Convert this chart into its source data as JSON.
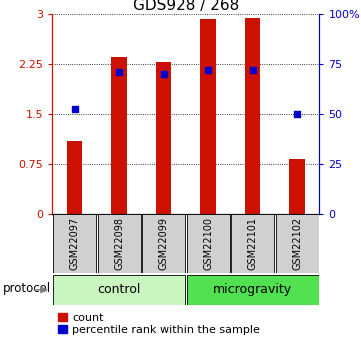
{
  "title": "GDS928 / 268",
  "samples": [
    "GSM22097",
    "GSM22098",
    "GSM22099",
    "GSM22100",
    "GSM22101",
    "GSM22102"
  ],
  "red_values": [
    1.1,
    2.35,
    2.28,
    2.92,
    2.93,
    0.82
  ],
  "blue_values": [
    1.57,
    2.12,
    2.1,
    2.15,
    2.15,
    1.5
  ],
  "ylim_left": [
    0,
    3
  ],
  "ylim_right": [
    0,
    100
  ],
  "yticks_left": [
    0,
    0.75,
    1.5,
    2.25,
    3
  ],
  "yticks_right": [
    0,
    25,
    50,
    75,
    100
  ],
  "ytick_labels_left": [
    "0",
    "0.75",
    "1.5",
    "2.25",
    "3"
  ],
  "ytick_labels_right": [
    "0",
    "25",
    "50",
    "75",
    "100%"
  ],
  "groups": [
    {
      "label": "control",
      "indices": [
        0,
        1,
        2
      ],
      "color": "#c8f5c0"
    },
    {
      "label": "microgravity",
      "indices": [
        3,
        4,
        5
      ],
      "color": "#50e050"
    }
  ],
  "bar_color": "#cc1100",
  "dot_color": "#0000cc",
  "bar_width": 0.35,
  "protocol_label": "protocol",
  "legend_count": "count",
  "legend_pct": "percentile rank within the sample",
  "xtick_bg": "#d0d0d0",
  "title_fontsize": 11,
  "tick_fontsize": 8,
  "sample_fontsize": 7,
  "group_fontsize": 9,
  "legend_fontsize": 8
}
